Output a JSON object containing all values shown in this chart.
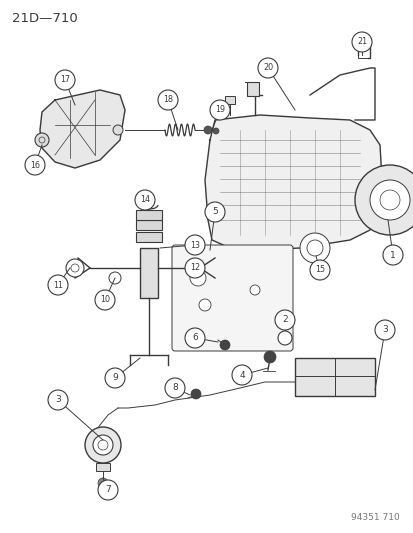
{
  "title_display": "21D—710",
  "catalog_number": "94351 710",
  "background_color": "#ffffff",
  "line_color": "#3a3a3a",
  "fig_width": 4.14,
  "fig_height": 5.33,
  "dpi": 100
}
